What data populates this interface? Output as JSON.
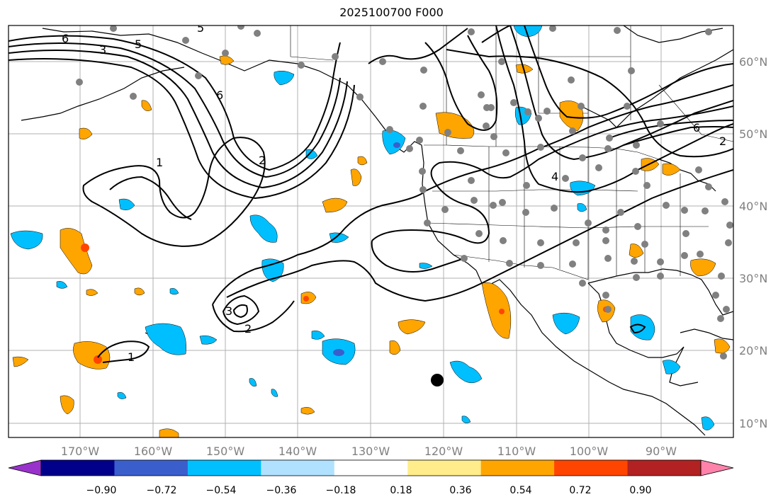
{
  "title": "2025100700 F000",
  "map": {
    "lon_labels": [
      "170°W",
      "160°W",
      "150°W",
      "140°W",
      "130°W",
      "120°W",
      "110°W",
      "100°W",
      "90°W"
    ],
    "lat_labels": [
      "60°N",
      "50°N",
      "40°N",
      "30°N",
      "20°N",
      "10°N"
    ],
    "contour_labels": [
      "6",
      "5",
      "3",
      "5",
      "6",
      "1",
      "2",
      "4",
      "6",
      "2",
      "3",
      "2",
      "1"
    ]
  },
  "colorbar": {
    "tick_labels": [
      "−0.90",
      "−0.72",
      "−0.54",
      "−0.36",
      "−0.18",
      "0.18",
      "0.36",
      "0.54",
      "0.72",
      "0.90"
    ],
    "colors": [
      "#9932cc",
      "#00008b",
      "#3a5fcd",
      "#00bfff",
      "#b0e2ff",
      "#ffffff",
      "#ffec8b",
      "#ffa500",
      "#ff4500",
      "#b22222",
      "#ff82ab"
    ]
  },
  "palette": {
    "strong_neg": "#00bfff",
    "weak_neg": "#b0e2ff",
    "weak_pos": "#ffec8b",
    "strong_pos": "#ffa500",
    "very_pos": "#ff4500",
    "station": "#808080"
  }
}
